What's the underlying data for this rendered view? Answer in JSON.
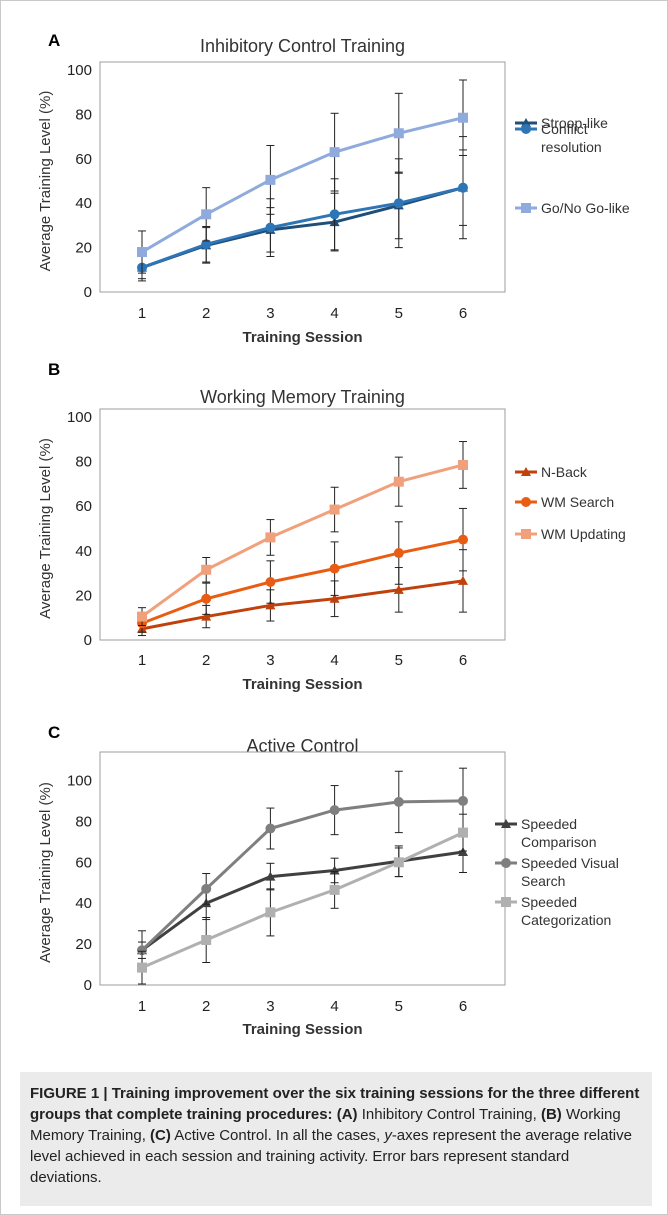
{
  "caption": {
    "bold_lead": "FIGURE 1 | Training improvement over the six training sessions for the three different groups that complete training procedures:",
    "label_a": "(A)",
    "text_a": " Inhibitory Control Training, ",
    "label_b": "(B)",
    "text_b": " Working Memory Training, ",
    "label_c": "(C)",
    "text_c_before": " Active Control. In all the cases, ",
    "axis_word": "y",
    "text_c_after": "-axes represent the average relative level achieved in each session and training activity. Error bars represent standard deviations."
  },
  "chart_data": [
    {
      "panel": "A",
      "type": "line",
      "title": "Inhibitory Control Training",
      "xlabel": "Training Session",
      "ylabel": "Average Training Level (%)",
      "x": [
        1,
        2,
        3,
        4,
        5,
        6
      ],
      "ylim": [
        0,
        100
      ],
      "yticks": [
        0,
        20,
        40,
        60,
        80,
        100
      ],
      "legend_position": "right",
      "grid": false,
      "series": [
        {
          "name": "Stroop-like",
          "marker": "triangle",
          "color": "#1f4e79",
          "values": [
            11,
            21,
            28,
            31.5,
            39,
            47
          ],
          "sd": [
            6,
            8,
            10,
            13,
            15,
            17
          ]
        },
        {
          "name": "Conflict resolution",
          "marker": "circle",
          "color": "#2e75b6",
          "values": [
            11,
            21.5,
            29,
            35,
            40,
            47
          ],
          "sd": [
            5,
            8,
            13,
            16,
            20,
            23
          ]
        },
        {
          "name": "Go/No Go-like",
          "marker": "square",
          "color": "#8faadc",
          "values": [
            18,
            35,
            50.5,
            63,
            71.5,
            78.5
          ],
          "sd": [
            9.5,
            12,
            15.5,
            17.5,
            18,
            17
          ]
        }
      ]
    },
    {
      "panel": "B",
      "type": "line",
      "title": "Working Memory Training",
      "xlabel": "Training Session",
      "ylabel": "Average Training Level (%)",
      "x": [
        1,
        2,
        3,
        4,
        5,
        6
      ],
      "ylim": [
        0,
        100
      ],
      "yticks": [
        0,
        20,
        40,
        60,
        80,
        100
      ],
      "legend_position": "right",
      "grid": false,
      "series": [
        {
          "name": "N-Back",
          "marker": "triangle",
          "color": "#c0410b",
          "values": [
            5,
            10.5,
            15.5,
            18.5,
            22.5,
            26.5
          ],
          "sd": [
            3,
            5,
            7,
            8,
            10,
            14
          ]
        },
        {
          "name": "WM Search",
          "marker": "circle",
          "color": "#e85d13",
          "values": [
            7.5,
            18.5,
            26,
            32,
            39,
            45
          ],
          "sd": [
            4,
            7,
            9.5,
            12,
            14,
            14
          ]
        },
        {
          "name": "WM Updating",
          "marker": "square",
          "color": "#f0a07a",
          "values": [
            10.5,
            31.5,
            46,
            58.5,
            71,
            78.5
          ],
          "sd": [
            4,
            5.5,
            8,
            10,
            11,
            10.5
          ]
        }
      ]
    },
    {
      "panel": "C",
      "type": "line",
      "title": "Active Control",
      "xlabel": "Training Session",
      "ylabel": "Average Training Level (%)",
      "x": [
        1,
        2,
        3,
        4,
        5,
        6
      ],
      "ylim": [
        0,
        110
      ],
      "yticks": [
        0,
        20,
        40,
        60,
        80,
        100
      ],
      "legend_position": "right",
      "grid": false,
      "series": [
        {
          "name": "Speeded Comparison",
          "marker": "triangle",
          "color": "#404040",
          "values": [
            17,
            40,
            53,
            56,
            60.5,
            65
          ],
          "sd": [
            4,
            8,
            6.5,
            6,
            7.5,
            10
          ]
        },
        {
          "name": "Speeded Visual Search",
          "marker": "circle",
          "color": "#7f7f7f",
          "values": [
            17,
            47,
            76.5,
            85.5,
            89.5,
            90
          ],
          "sd": [
            9.5,
            7.5,
            10,
            12,
            15,
            16
          ]
        },
        {
          "name": "Speeded Categorization",
          "marker": "square",
          "color": "#b0b0b0",
          "values": [
            8.5,
            22,
            35.5,
            46.5,
            60,
            74.5
          ],
          "sd": [
            8,
            11,
            11.5,
            9,
            7,
            9
          ]
        }
      ]
    }
  ]
}
